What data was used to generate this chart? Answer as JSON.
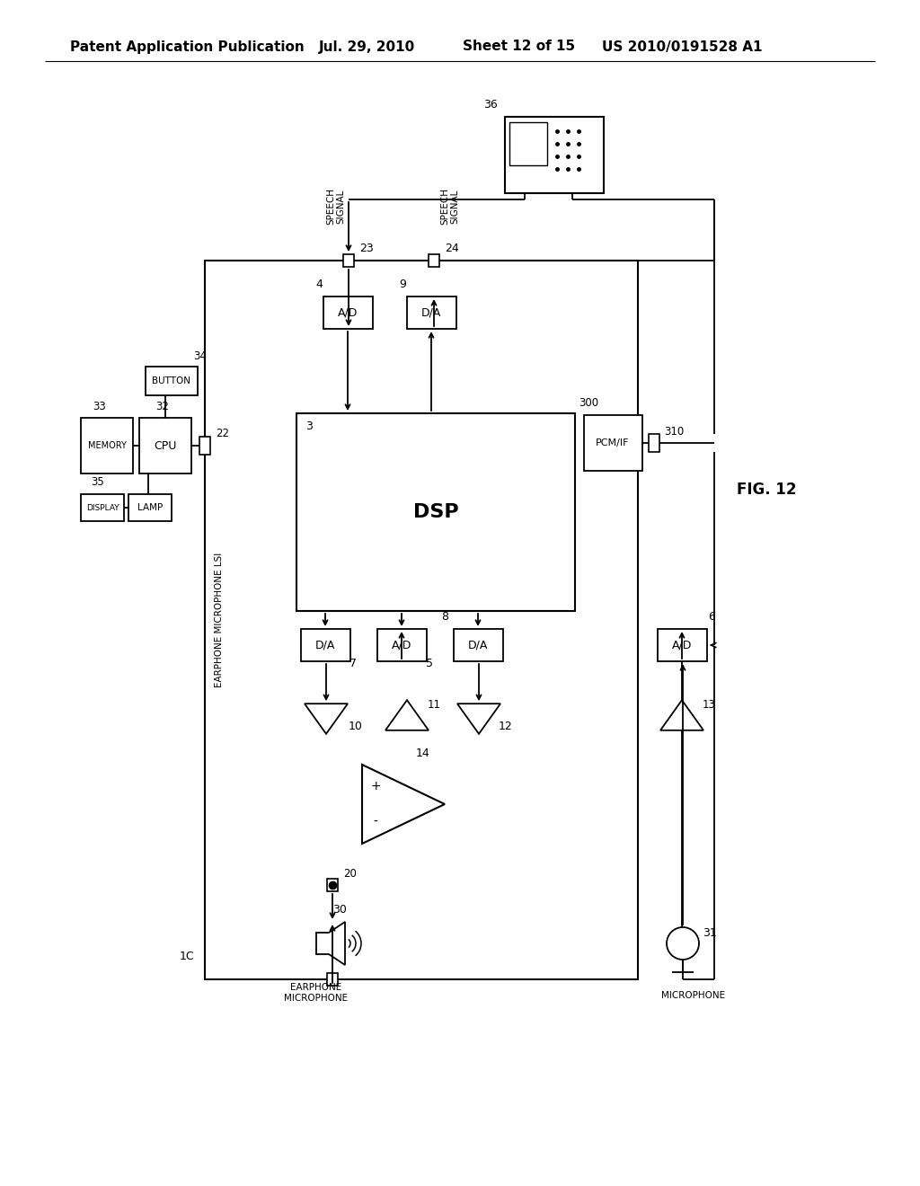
{
  "header_left": "Patent Application Publication",
  "header_mid1": "Jul. 29, 2010",
  "header_mid2": "Sheet 12 of 15",
  "header_right": "US 2010/0191528 A1",
  "fig_label": "FIG. 12",
  "bg": "#ffffff"
}
